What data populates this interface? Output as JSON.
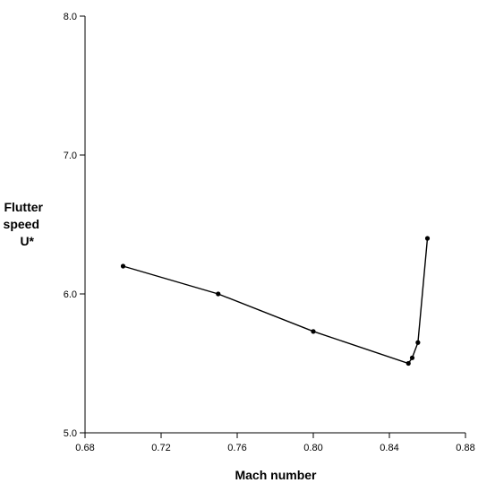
{
  "chart_data": {
    "type": "line",
    "xlabel": "Mach number",
    "ylabel_lines": [
      "Flutter",
      "speed",
      "U*"
    ],
    "xlim": [
      0.68,
      0.88
    ],
    "ylim": [
      5.0,
      8.0
    ],
    "x_ticks": [
      "0.68",
      "0.72",
      "0.76",
      "0.80",
      "0.84",
      "0.88"
    ],
    "y_ticks": [
      "5.0",
      "6.0",
      "7.0",
      "8.0"
    ],
    "grid": false,
    "series": [
      {
        "color": "#000000",
        "x": [
          0.7,
          0.75,
          0.8,
          0.85,
          0.852,
          0.855,
          0.86
        ],
        "y": [
          6.2,
          6.0,
          5.73,
          5.5,
          5.54,
          5.65,
          6.4
        ]
      }
    ]
  }
}
